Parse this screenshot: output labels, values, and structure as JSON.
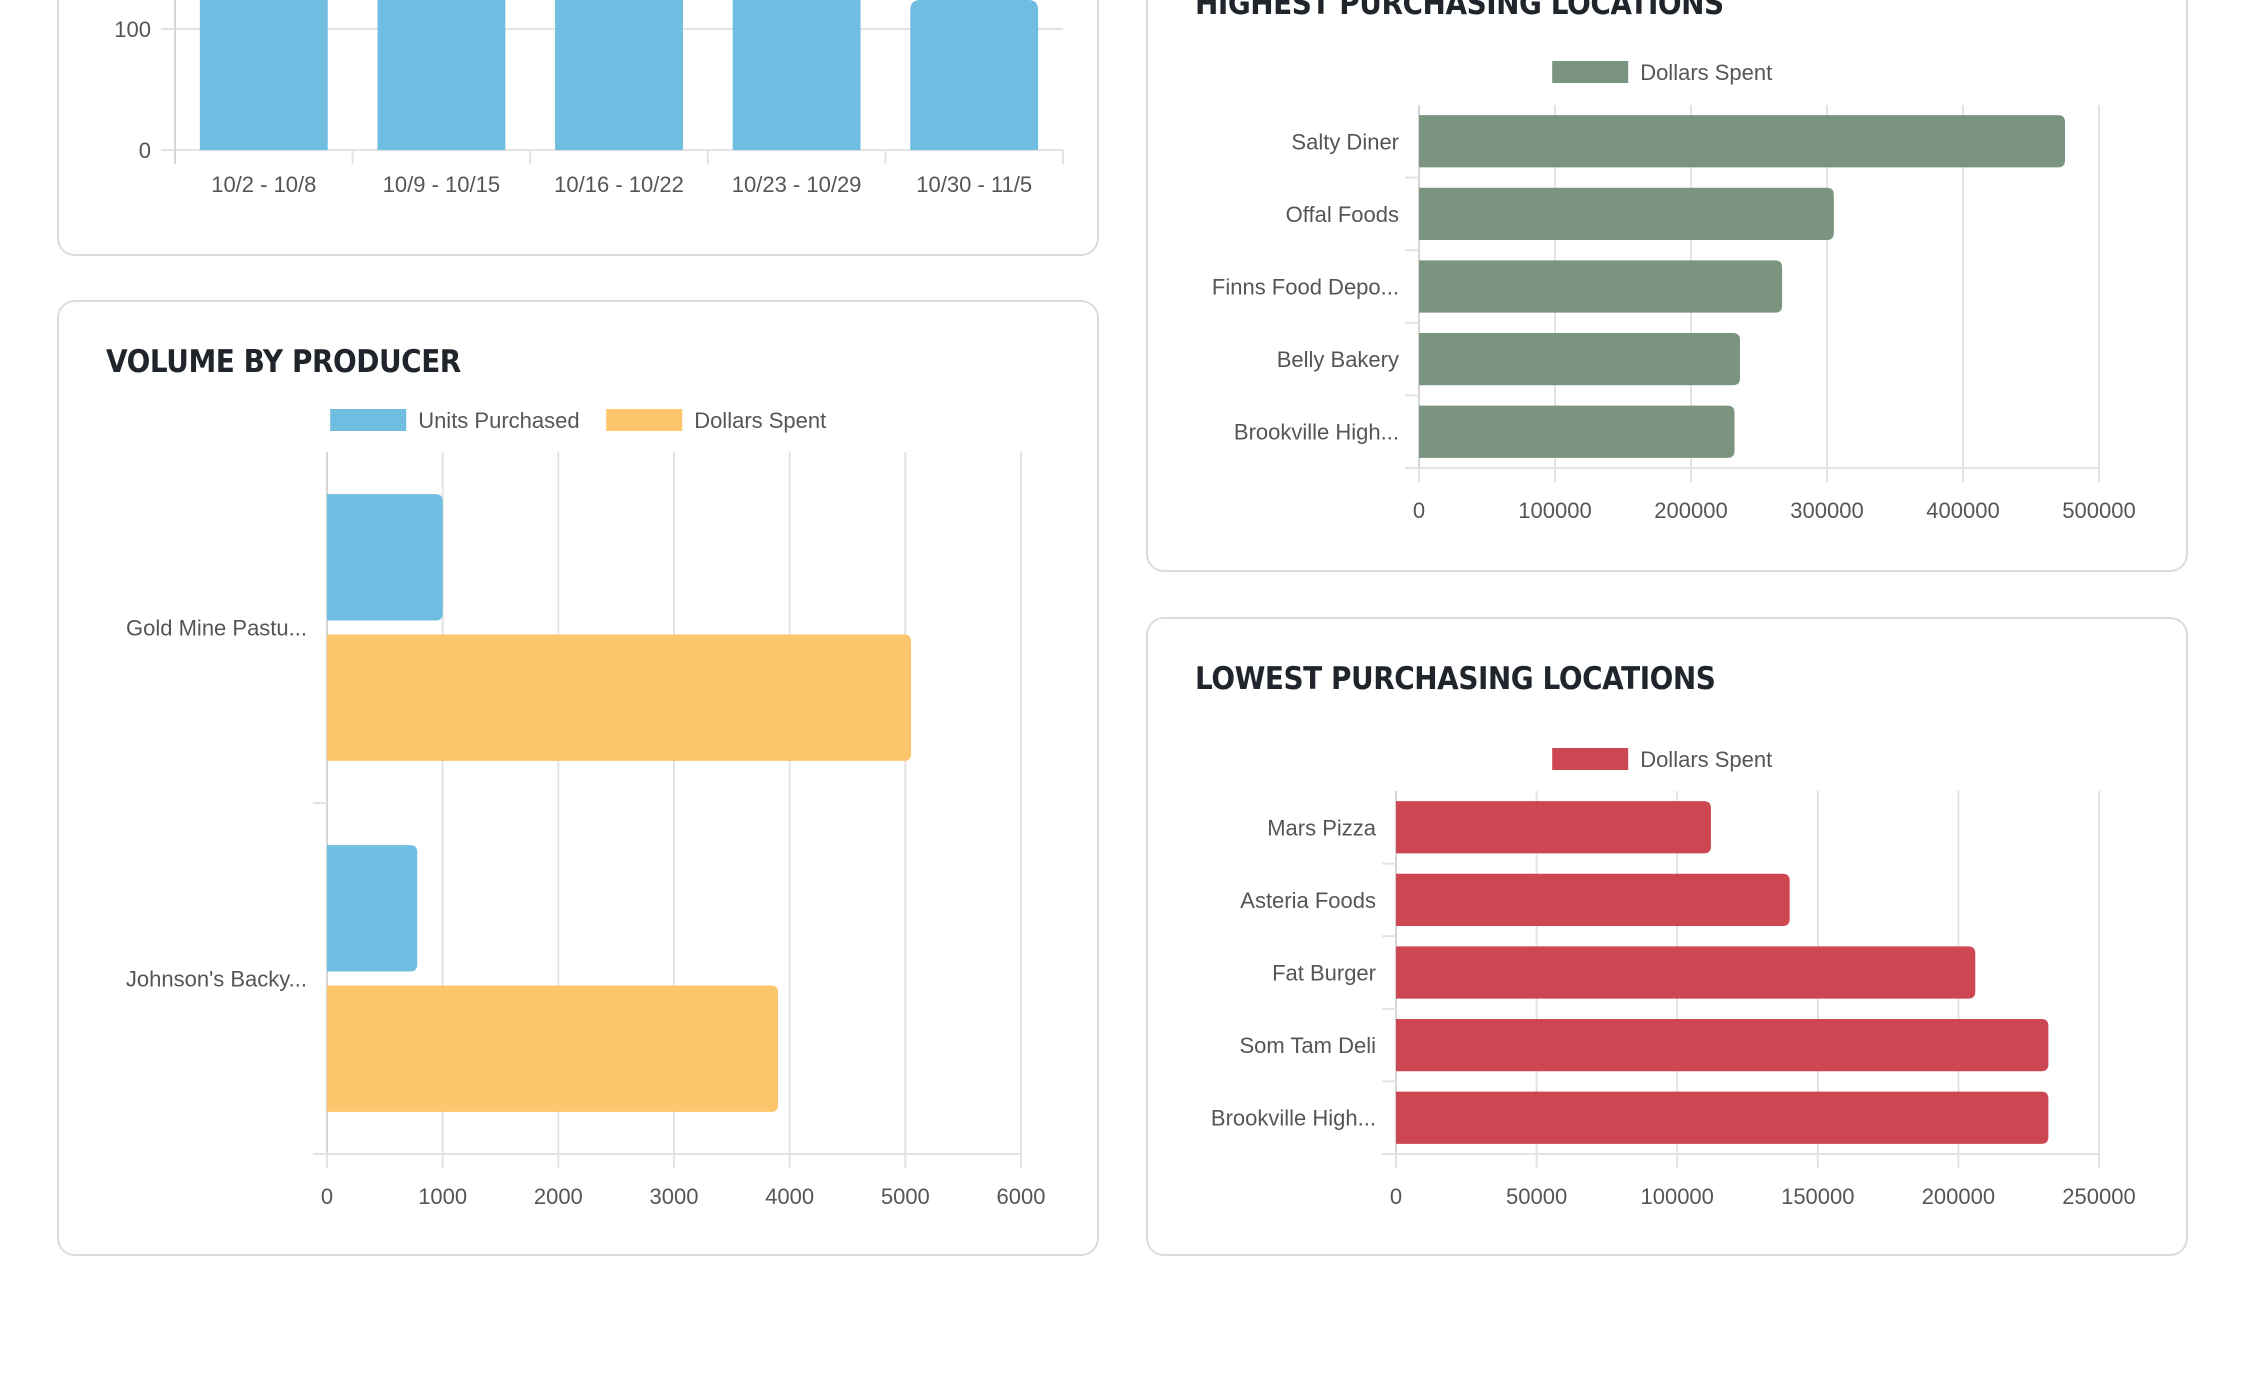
{
  "cards": {
    "weekly": {
      "title": ""
    },
    "producer": {
      "title": "VOLUME BY PRODUCER"
    },
    "highest": {
      "title": "HIGHEST PURCHASING LOCATIONS"
    },
    "lowest": {
      "title": "LOWEST PURCHASING LOCATIONS"
    }
  },
  "chart_data": [
    {
      "id": "weekly",
      "type": "bar",
      "orientation": "vertical",
      "categories": [
        "10/2 - 10/8",
        "10/9 - 10/15",
        "10/16 - 10/22",
        "10/23 - 10/29",
        "10/30 - 11/5"
      ],
      "series": [
        {
          "color": "#6fbde0",
          "values": [
            null,
            null,
            null,
            null,
            null
          ]
        }
      ],
      "yticks": [
        0,
        100
      ],
      "grid": true,
      "note": "bars extend above visible area (cropped)"
    },
    {
      "id": "producer",
      "type": "bar",
      "orientation": "horizontal",
      "categories": [
        "Gold Mine Pastu...",
        "Johnson's Backy..."
      ],
      "series": [
        {
          "name": "Units Purchased",
          "color": "#6fbde0",
          "values": [
            1000,
            780
          ]
        },
        {
          "name": "Dollars Spent",
          "color": "#fdc56c",
          "values": [
            5050,
            3900
          ]
        }
      ],
      "xlim": [
        0,
        6000
      ],
      "xticks": [
        0,
        1000,
        2000,
        3000,
        4000,
        5000,
        6000
      ],
      "legend": "top",
      "grid": true
    },
    {
      "id": "highest",
      "type": "bar",
      "orientation": "horizontal",
      "categories": [
        "Salty Diner",
        "Offal Foods",
        "Finns Food Depo...",
        "Belly Bakery",
        "Brookville High..."
      ],
      "series": [
        {
          "name": "Dollars Spent",
          "color": "#7a947f",
          "values": [
            475000,
            305000,
            267000,
            236000,
            232000
          ]
        }
      ],
      "xlim": [
        0,
        500000
      ],
      "xticks": [
        0,
        100000,
        200000,
        300000,
        400000,
        500000
      ],
      "legend": "top",
      "grid": true
    },
    {
      "id": "lowest",
      "type": "bar",
      "orientation": "horizontal",
      "categories": [
        "Mars Pizza",
        "Asteria Foods",
        "Fat Burger",
        "Som Tam Deli",
        "Brookville High..."
      ],
      "series": [
        {
          "name": "Dollars Spent",
          "color": "#cc4751",
          "values": [
            112000,
            140000,
            206000,
            232000,
            232000
          ]
        }
      ],
      "xlim": [
        0,
        250000
      ],
      "xticks": [
        0,
        50000,
        100000,
        150000,
        200000,
        250000
      ],
      "legend": "top",
      "grid": true
    }
  ]
}
